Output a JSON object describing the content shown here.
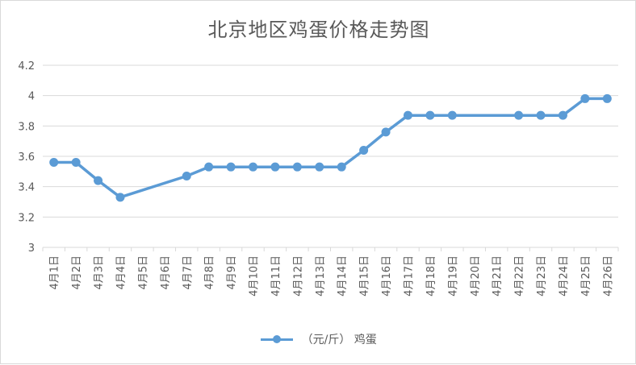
{
  "chart_data": {
    "type": "line",
    "title": "北京地区鸡蛋价格走势图",
    "categories": [
      "4月1日",
      "4月2日",
      "4月3日",
      "4月4日",
      "4月5日",
      "4月6日",
      "4月7日",
      "4月8日",
      "4月9日",
      "4月10日",
      "4月11日",
      "4月12日",
      "4月13日",
      "4月14日",
      "4月15日",
      "4月16日",
      "4月17日",
      "4月18日",
      "4月19日",
      "4月20日",
      "4月21日",
      "4月22日",
      "4月23日",
      "4月24日",
      "4月25日",
      "4月26日"
    ],
    "series": [
      {
        "name": "（元/斤） 鸡蛋",
        "values": [
          3.56,
          3.56,
          3.44,
          3.33,
          null,
          null,
          3.47,
          3.53,
          3.53,
          3.53,
          3.53,
          3.53,
          3.53,
          3.53,
          3.64,
          3.76,
          3.87,
          3.87,
          3.87,
          null,
          null,
          3.87,
          3.87,
          3.87,
          3.98,
          3.98
        ],
        "color": "#5b9bd5"
      }
    ],
    "yticks": [
      "3",
      "3.2",
      "3.4",
      "3.6",
      "3.8",
      "4",
      "4.2"
    ],
    "ylim": [
      3,
      4.2
    ],
    "grid": true,
    "legend_position": "bottom",
    "gap_handling": "connect"
  }
}
